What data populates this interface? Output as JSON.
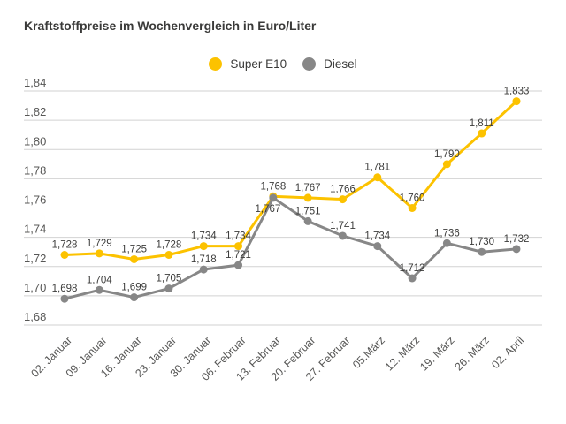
{
  "chart_data": {
    "type": "line",
    "title": "Kraftstoffpreise im Wochenvergleich in Euro/Liter",
    "unit": "Euro/Liter",
    "grid": true,
    "legend_position": "top-center",
    "categories": [
      "02. Januar",
      "09. Januar",
      "16. Januar",
      "23. Januar",
      "30. Januar",
      "06. Februar",
      "13. Februar",
      "20. Februar",
      "27. Februar",
      "05.März",
      "12. März",
      "19. März",
      "26. März",
      "02. April"
    ],
    "series": [
      {
        "name": "Super E10",
        "color": "#fcc200",
        "values": [
          1.728,
          1.729,
          1.725,
          1.728,
          1.734,
          1.734,
          1.768,
          1.767,
          1.766,
          1.781,
          1.76,
          1.79,
          1.811,
          1.833
        ],
        "labels": [
          "1,728",
          "1,729",
          "1,725",
          "1,728",
          "1,734",
          "1,734",
          "1,768",
          "1,767",
          "1,766",
          "1,781",
          "1,760",
          "1,790",
          "1,811",
          "1,833"
        ],
        "label_below_indices": []
      },
      {
        "name": "Diesel",
        "color": "#878787",
        "values": [
          1.698,
          1.704,
          1.699,
          1.705,
          1.718,
          1.721,
          1.767,
          1.751,
          1.741,
          1.734,
          1.712,
          1.736,
          1.73,
          1.732
        ],
        "labels": [
          "1,698",
          "1,704",
          "1,699",
          "1,705",
          "1,718",
          "1,721",
          "1,767",
          "1,751",
          "1,741",
          "1,734",
          "1,712",
          "1,736",
          "1,730",
          "1,732"
        ],
        "label_below_indices": [
          6
        ]
      }
    ],
    "y_axis": {
      "min": 1.68,
      "max": 1.84,
      "step": 0.02,
      "tick_labels": [
        "1,84",
        "1,82",
        "1,80",
        "1,78",
        "1,76",
        "1,74",
        "1,72",
        "1,70",
        "1,68"
      ]
    }
  },
  "legend": [
    {
      "label": "Super E10",
      "color": "#fcc200"
    },
    {
      "label": "Diesel",
      "color": "#878787"
    }
  ],
  "colors": {
    "title_text": "#3a3a39",
    "value_label_text": "#3c3c3b",
    "axis_tick_text": "#575756",
    "gridline": "#d2d2d2",
    "super_e10": "#fcc200",
    "diesel": "#878787"
  }
}
